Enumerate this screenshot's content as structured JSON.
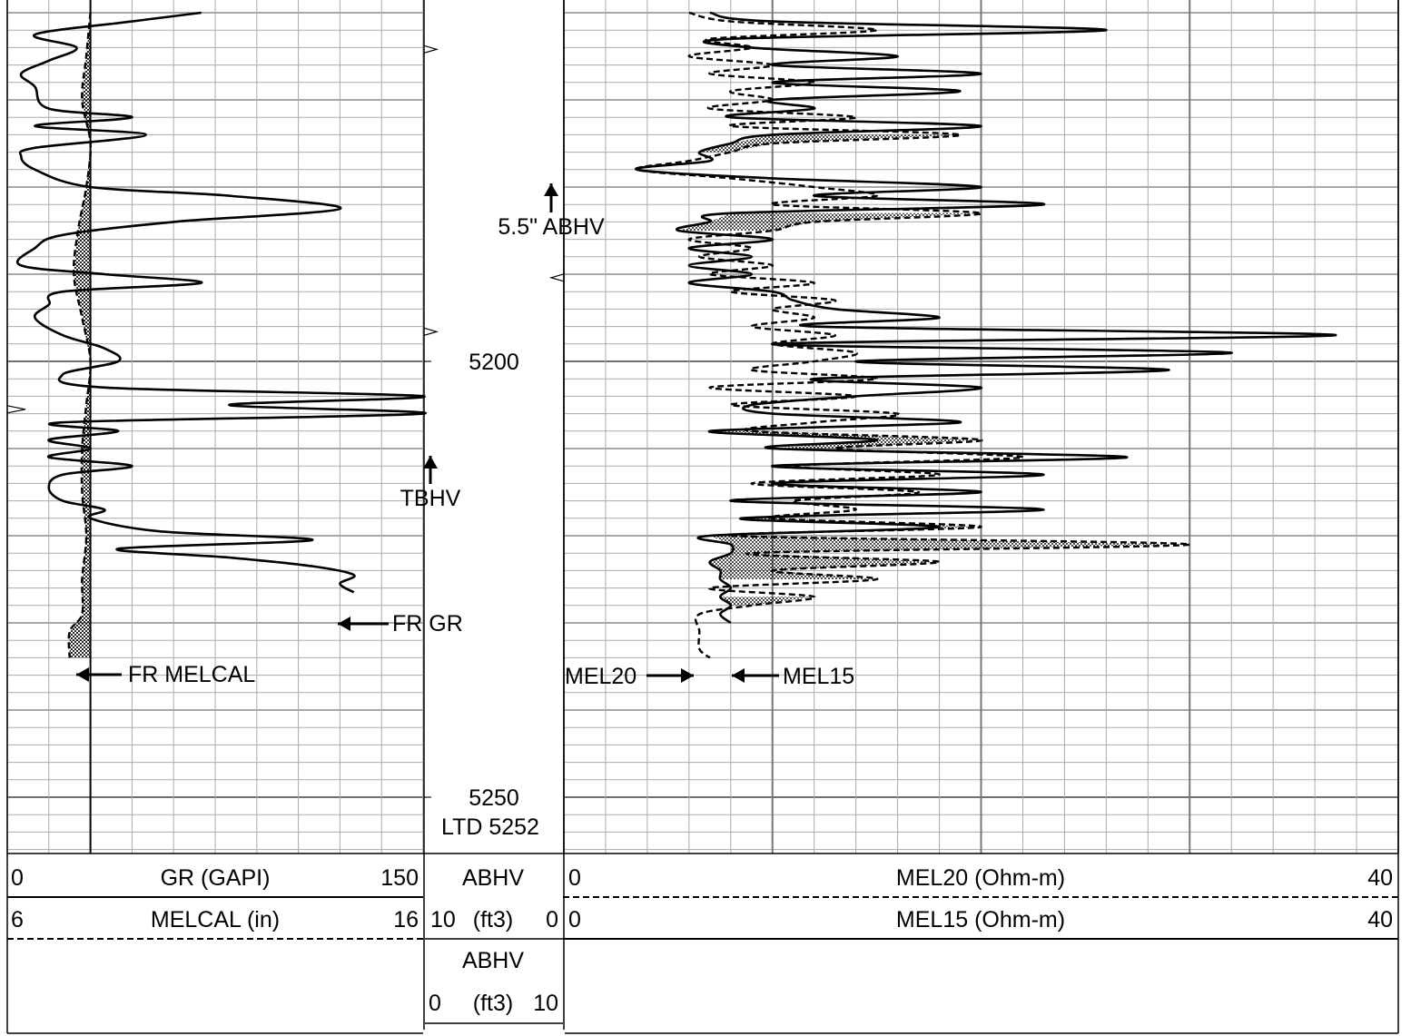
{
  "depth_labels": [
    "5200",
    "5250"
  ],
  "ltd_label": "LTD 5252",
  "annotations": {
    "abhv_marker": "5.5\" ABHV",
    "tbhv_marker": "TBHV",
    "fr_gr": "FR GR",
    "fr_melcal": "FR MELCAL",
    "mel20": "MEL20",
    "mel15": "MEL15"
  },
  "header": {
    "gr": {
      "min": "0",
      "label": "GR (GAPI)",
      "max": "150"
    },
    "melcal": {
      "min": "6",
      "label": "MELCAL (in)",
      "max": "16"
    },
    "abhv_top": {
      "label": "ABHV"
    },
    "abhv_scale_1": {
      "min": "10",
      "unit": "(ft3)",
      "max": "0"
    },
    "abhv_bottom": {
      "label": "ABHV"
    },
    "abhv_scale_2": {
      "min": "0",
      "unit": "(ft3)",
      "max": "10"
    },
    "mel20": {
      "min": "0",
      "label": "MEL20 (Ohm-m)",
      "max": "40"
    },
    "mel15": {
      "min": "0",
      "label": "MEL15 (Ohm-m)",
      "max": "40"
    }
  },
  "colors": {
    "curve": "#000000",
    "grid": "#aaaaaa",
    "grid_major": "#888888",
    "background": "#ffffff"
  },
  "chart_data": {
    "type": "line",
    "depth_unit": "ft",
    "depth_axis": {
      "labels": [
        5200,
        5250
      ],
      "ltd": 5252,
      "top": 5160,
      "bottom": 5256
    },
    "tracks": [
      {
        "track": 1,
        "curves": [
          {
            "name": "GR",
            "unit": "GAPI",
            "range": [
              0,
              150
            ],
            "style": "solid",
            "points": [
              [
                5160,
                70
              ],
              [
                5161,
                45
              ],
              [
                5162.5,
                10
              ],
              [
                5164,
                25
              ],
              [
                5165.5,
                15
              ],
              [
                5167,
                5
              ],
              [
                5168.5,
                10
              ],
              [
                5171,
                15
              ],
              [
                5172,
                45
              ],
              [
                5173,
                10
              ],
              [
                5174,
                50
              ],
              [
                5175.5,
                10
              ],
              [
                5176.5,
                5
              ],
              [
                5178,
                10
              ],
              [
                5180,
                30
              ],
              [
                5181,
                80
              ],
              [
                5182.5,
                120
              ],
              [
                5184,
                60
              ],
              [
                5185.5,
                20
              ],
              [
                5187,
                10
              ],
              [
                5189,
                5
              ],
              [
                5190,
                35
              ],
              [
                5191,
                70
              ],
              [
                5192,
                20
              ],
              [
                5193.5,
                15
              ],
              [
                5195,
                10
              ],
              [
                5197,
                20
              ],
              [
                5198.5,
                35
              ],
              [
                5200,
                40
              ],
              [
                5201.5,
                20
              ],
              [
                5203,
                35
              ],
              [
                5204,
                150
              ],
              [
                5205,
                80
              ],
              [
                5206,
                150
              ],
              [
                5207,
                20
              ],
              [
                5208,
                40
              ],
              [
                5209,
                15
              ],
              [
                5210,
                30
              ],
              [
                5211,
                15
              ],
              [
                5212,
                45
              ],
              [
                5213,
                20
              ],
              [
                5214.5,
                15
              ],
              [
                5216,
                20
              ],
              [
                5217,
                35
              ],
              [
                5218,
                30
              ],
              [
                5219.5,
                55
              ],
              [
                5220.5,
                110
              ],
              [
                5221.5,
                40
              ],
              [
                5222.5,
                80
              ],
              [
                5223.5,
                110
              ],
              [
                5224.5,
                125
              ],
              [
                5225.5,
                120
              ],
              [
                5226.5,
                125
              ]
            ]
          },
          {
            "name": "MELCAL",
            "unit": "in",
            "range": [
              6,
              16
            ],
            "style": "dashed",
            "points": [
              [
                5160,
                8
              ],
              [
                5165,
                7.9
              ],
              [
                5170,
                7.8
              ],
              [
                5175,
                8
              ],
              [
                5180,
                7.9
              ],
              [
                5185,
                7.7
              ],
              [
                5190,
                7.6
              ],
              [
                5195,
                7.8
              ],
              [
                5200,
                8
              ],
              [
                5205,
                7.9
              ],
              [
                5210,
                7.8
              ],
              [
                5215,
                7.8
              ],
              [
                5220,
                7.9
              ],
              [
                5225,
                7.8
              ],
              [
                5229,
                7.8
              ],
              [
                5231,
                7.5
              ],
              [
                5234,
                7.5
              ]
            ]
          }
        ]
      },
      {
        "track": 2,
        "curves": [
          {
            "name": "ABHV",
            "unit": "ft3",
            "range": [
              10,
              0
            ],
            "markers": [
              "5.5\" ABHV"
            ]
          },
          {
            "name": "ABHV",
            "unit": "ft3",
            "range": [
              0,
              10
            ],
            "markers": [
              "TBHV"
            ]
          }
        ]
      },
      {
        "track": 3,
        "curves": [
          {
            "name": "MEL20",
            "unit": "Ohm-m",
            "range": [
              0,
              40
            ],
            "style": "dashed",
            "points": [
              [
                5160,
                6
              ],
              [
                5161,
                8
              ],
              [
                5162,
                15
              ],
              [
                5163,
                7
              ],
              [
                5164,
                9
              ],
              [
                5165,
                6
              ],
              [
                5166,
                10
              ],
              [
                5167,
                7
              ],
              [
                5168,
                12
              ],
              [
                5169,
                8
              ],
              [
                5170,
                10
              ],
              [
                5171,
                7
              ],
              [
                5172,
                14
              ],
              [
                5173,
                8
              ],
              [
                5174,
                19
              ],
              [
                5175,
                10
              ],
              [
                5176,
                8
              ],
              [
                5177,
                6
              ],
              [
                5178,
                3.5
              ],
              [
                5179,
                8
              ],
              [
                5180,
                12
              ],
              [
                5181,
                15
              ],
              [
                5182,
                10
              ],
              [
                5183,
                20
              ],
              [
                5184,
                12
              ],
              [
                5185,
                10
              ],
              [
                5186,
                6
              ],
              [
                5187,
                9
              ],
              [
                5188,
                6.5
              ],
              [
                5189,
                10
              ],
              [
                5190,
                7
              ],
              [
                5191,
                12
              ],
              [
                5192,
                8
              ],
              [
                5193,
                13
              ],
              [
                5194,
                10
              ],
              [
                5195,
                12
              ],
              [
                5196,
                9
              ],
              [
                5197,
                13
              ],
              [
                5198,
                10
              ],
              [
                5199,
                14
              ],
              [
                5200,
                12
              ],
              [
                5201,
                9
              ],
              [
                5202,
                15
              ],
              [
                5203,
                7
              ],
              [
                5204,
                14
              ],
              [
                5205,
                8
              ],
              [
                5206,
                16
              ],
              [
                5207,
                12
              ],
              [
                5208,
                9
              ],
              [
                5209,
                20
              ],
              [
                5210,
                13
              ],
              [
                5211,
                22
              ],
              [
                5212,
                11
              ],
              [
                5213,
                18
              ],
              [
                5214,
                9
              ],
              [
                5215,
                17
              ],
              [
                5216,
                11
              ],
              [
                5217,
                14
              ],
              [
                5218,
                10
              ],
              [
                5219,
                20
              ],
              [
                5220,
                8
              ],
              [
                5221,
                30
              ],
              [
                5222,
                9
              ],
              [
                5223,
                18
              ],
              [
                5224,
                10
              ],
              [
                5225,
                15
              ],
              [
                5226,
                7
              ],
              [
                5227,
                12
              ],
              [
                5228,
                9
              ],
              [
                5229,
                6.5
              ],
              [
                5231,
                6.5
              ],
              [
                5233,
                6.5
              ],
              [
                5234,
                7
              ]
            ]
          },
          {
            "name": "MEL15",
            "unit": "Ohm-m",
            "range": [
              0,
              40
            ],
            "style": "solid",
            "points": [
              [
                5160,
                7
              ],
              [
                5161,
                10
              ],
              [
                5162,
                26
              ],
              [
                5163,
                8
              ],
              [
                5164,
                9
              ],
              [
                5165,
                16
              ],
              [
                5166,
                10
              ],
              [
                5167,
                20
              ],
              [
                5168,
                10
              ],
              [
                5169,
                19
              ],
              [
                5170,
                10
              ],
              [
                5171,
                12
              ],
              [
                5172,
                8
              ],
              [
                5173,
                20
              ],
              [
                5174,
                10
              ],
              [
                5175,
                8
              ],
              [
                5176,
                6.5
              ],
              [
                5177,
                7
              ],
              [
                5178,
                3.5
              ],
              [
                5179,
                10
              ],
              [
                5180,
                20
              ],
              [
                5181,
                12
              ],
              [
                5182,
                23
              ],
              [
                5183,
                8
              ],
              [
                5184,
                7
              ],
              [
                5185,
                5.5
              ],
              [
                5186,
                10
              ],
              [
                5187,
                6
              ],
              [
                5188,
                9
              ],
              [
                5189,
                6
              ],
              [
                5190,
                9
              ],
              [
                5191,
                6
              ],
              [
                5192,
                10
              ],
              [
                5193,
                11
              ],
              [
                5194,
                13
              ],
              [
                5195,
                18
              ],
              [
                5196,
                12
              ],
              [
                5197,
                37
              ],
              [
                5198,
                10
              ],
              [
                5199,
                32
              ],
              [
                5200,
                14
              ],
              [
                5201,
                29
              ],
              [
                5202,
                12
              ],
              [
                5203,
                20
              ],
              [
                5204,
                14
              ],
              [
                5205,
                9
              ],
              [
                5206,
                10
              ],
              [
                5207,
                19
              ],
              [
                5208,
                7
              ],
              [
                5209,
                15
              ],
              [
                5210,
                10
              ],
              [
                5211,
                27
              ],
              [
                5212,
                10
              ],
              [
                5213,
                23
              ],
              [
                5214,
                10
              ],
              [
                5215,
                20
              ],
              [
                5216,
                8
              ],
              [
                5217,
                23
              ],
              [
                5218,
                8.5
              ],
              [
                5219,
                18
              ],
              [
                5220,
                7
              ],
              [
                5221,
                8
              ],
              [
                5222,
                8
              ],
              [
                5223,
                7
              ],
              [
                5224,
                7.5
              ],
              [
                5225,
                7.5
              ],
              [
                5226,
                8
              ],
              [
                5227,
                7.5
              ],
              [
                5228,
                8
              ],
              [
                5229,
                7.5
              ],
              [
                5230,
                8
              ]
            ]
          }
        ]
      }
    ]
  }
}
